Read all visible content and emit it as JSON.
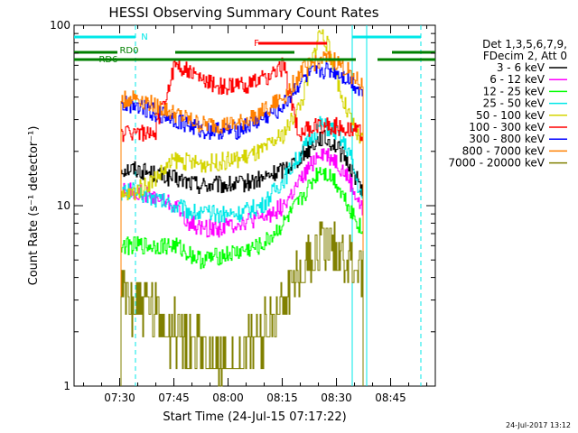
{
  "chart_data": {
    "type": "line",
    "title": "HESSI Observing Summary Count Rates",
    "xlabel": "Start Time (24-Jul-15 07:17:22)",
    "ylabel": "Count Rate (s⁻¹ detector⁻¹)",
    "x_ticks": [
      "07:30",
      "07:45",
      "08:00",
      "08:15",
      "08:30",
      "08:45"
    ],
    "y_ticks": [
      "1",
      "10",
      "100"
    ],
    "yscale": "log",
    "ylim": [
      1,
      100
    ],
    "xlim_minutes_after_start": [
      0,
      100
    ],
    "legend_title": [
      "Det 1,3,5,6,7,9,",
      "FDecim 2, Att 0"
    ],
    "legend_position": "right",
    "footer": "24-Jul-2017 13:12",
    "flag_labels": [
      "N",
      "RD0",
      "RD6",
      "F"
    ],
    "flags": [
      {
        "label": "N",
        "color": "#00e8e8",
        "segments": [
          [
            0,
            17
          ],
          [
            77,
            96
          ]
        ]
      },
      {
        "label": "RD0",
        "color": "#008000",
        "segments": [
          [
            0,
            12
          ],
          [
            28,
            61
          ],
          [
            88,
            100
          ]
        ]
      },
      {
        "label": "RD6",
        "color": "#008000",
        "segments": [
          [
            0,
            78
          ],
          [
            84,
            100
          ]
        ]
      },
      {
        "label": "F",
        "color": "#ff0000",
        "segments": [
          [
            51,
            70
          ]
        ]
      }
    ],
    "vlines": [
      {
        "x": 17,
        "color": "#00e8e8",
        "style": "dashed"
      },
      {
        "x": 77,
        "color": "#00e8e8",
        "style": "solid"
      },
      {
        "x": 81,
        "color": "#00e8e8",
        "style": "solid"
      },
      {
        "x": 96,
        "color": "#00e8e8",
        "style": "dashed"
      }
    ],
    "series": [
      {
        "name": "3 - 6 keV",
        "color": "#000000",
        "points": [
          [
            13,
            16
          ],
          [
            17,
            16
          ],
          [
            22,
            15
          ],
          [
            28,
            14
          ],
          [
            35,
            13
          ],
          [
            45,
            13
          ],
          [
            52,
            14
          ],
          [
            58,
            16
          ],
          [
            63,
            19
          ],
          [
            68,
            24
          ],
          [
            72,
            22
          ],
          [
            76,
            17
          ],
          [
            80,
            12
          ]
        ]
      },
      {
        "name": "6 - 12 keV",
        "color": "#ff00ff",
        "points": [
          [
            13,
            12
          ],
          [
            17,
            12
          ],
          [
            22,
            11
          ],
          [
            28,
            10
          ],
          [
            32,
            8
          ],
          [
            35,
            7.5
          ],
          [
            40,
            7.5
          ],
          [
            45,
            8
          ],
          [
            52,
            8.5
          ],
          [
            58,
            10
          ],
          [
            63,
            14
          ],
          [
            68,
            20
          ],
          [
            72,
            18
          ],
          [
            76,
            14
          ],
          [
            80,
            9
          ]
        ]
      },
      {
        "name": "12 - 25 keV",
        "color": "#00ff00",
        "points": [
          [
            13,
            6
          ],
          [
            17,
            6
          ],
          [
            22,
            6
          ],
          [
            28,
            6
          ],
          [
            35,
            5
          ],
          [
            45,
            5.5
          ],
          [
            52,
            6
          ],
          [
            58,
            8
          ],
          [
            63,
            11
          ],
          [
            68,
            16
          ],
          [
            72,
            14
          ],
          [
            76,
            10
          ],
          [
            80,
            7
          ]
        ]
      },
      {
        "name": "25 - 50 keV",
        "color": "#00e8e8",
        "points": [
          [
            13,
            12
          ],
          [
            17,
            12
          ],
          [
            22,
            11
          ],
          [
            28,
            10
          ],
          [
            35,
            9
          ],
          [
            45,
            9
          ],
          [
            52,
            10
          ],
          [
            58,
            14
          ],
          [
            63,
            20
          ],
          [
            68,
            28
          ],
          [
            72,
            26
          ],
          [
            76,
            20
          ],
          [
            80,
            10
          ]
        ]
      },
      {
        "name": "50 - 100 keV",
        "color": "#d4d400",
        "points": [
          [
            13,
            11
          ],
          [
            17,
            12
          ],
          [
            22,
            14
          ],
          [
            28,
            18
          ],
          [
            35,
            17
          ],
          [
            45,
            18
          ],
          [
            52,
            20
          ],
          [
            58,
            25
          ],
          [
            63,
            38
          ],
          [
            68,
            95
          ],
          [
            71,
            70
          ],
          [
            74,
            40
          ],
          [
            78,
            25
          ],
          [
            80,
            22
          ]
        ]
      },
      {
        "name": "100 - 300 keV",
        "color": "#ff0000",
        "points": [
          [
            13,
            25
          ],
          [
            17,
            26
          ],
          [
            22,
            24
          ],
          [
            28,
            62
          ],
          [
            35,
            50
          ],
          [
            42,
            45
          ],
          [
            50,
            48
          ],
          [
            56,
            55
          ],
          [
            58,
            60
          ],
          [
            62,
            25
          ],
          [
            68,
            28
          ],
          [
            76,
            27
          ],
          [
            80,
            25
          ]
        ]
      },
      {
        "name": "300 - 800 keV",
        "color": "#0000ff",
        "points": [
          [
            13,
            36
          ],
          [
            17,
            37
          ],
          [
            22,
            33
          ],
          [
            28,
            30
          ],
          [
            35,
            26
          ],
          [
            45,
            26
          ],
          [
            52,
            30
          ],
          [
            58,
            36
          ],
          [
            63,
            50
          ],
          [
            68,
            56
          ],
          [
            72,
            56
          ],
          [
            76,
            50
          ],
          [
            80,
            42
          ]
        ]
      },
      {
        "name": "800 - 7000 keV",
        "color": "#ff8000",
        "points": [
          [
            13,
            38
          ],
          [
            17,
            40
          ],
          [
            22,
            36
          ],
          [
            28,
            32
          ],
          [
            35,
            28
          ],
          [
            45,
            28
          ],
          [
            52,
            33
          ],
          [
            58,
            40
          ],
          [
            63,
            56
          ],
          [
            68,
            65
          ],
          [
            72,
            64
          ],
          [
            76,
            55
          ],
          [
            80,
            45
          ]
        ]
      },
      {
        "name": "7000 - 20000 keV",
        "color": "#808000",
        "points": [
          [
            13,
            3.2
          ],
          [
            17,
            3
          ],
          [
            22,
            2.5
          ],
          [
            28,
            2
          ],
          [
            35,
            1.6
          ],
          [
            40,
            1.3
          ],
          [
            45,
            1.3
          ],
          [
            52,
            2
          ],
          [
            58,
            3
          ],
          [
            63,
            4.5
          ],
          [
            68,
            6
          ],
          [
            72,
            6
          ],
          [
            76,
            5
          ],
          [
            80,
            4
          ]
        ]
      }
    ]
  }
}
